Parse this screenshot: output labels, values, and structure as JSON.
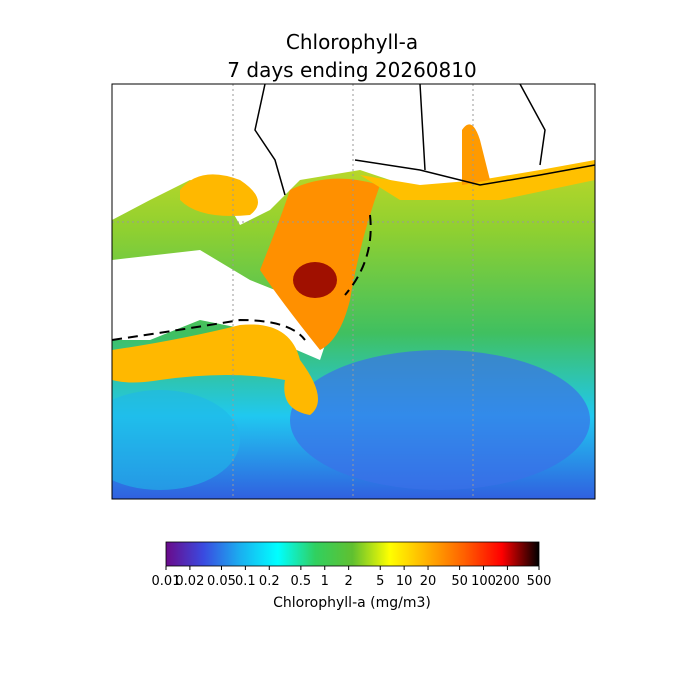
{
  "title": [
    "Chlorophyll-a",
    "7 days ending 20260810"
  ],
  "colorbar": {
    "label": "Chlorophyll-a (mg/m3)",
    "scale": "log",
    "lim": [
      0.01,
      500
    ],
    "ticks": [
      0.01,
      0.02,
      0.05,
      0.1,
      0.2,
      0.5,
      1,
      2,
      5,
      10,
      20,
      50,
      100,
      200,
      500
    ],
    "colors": [
      "#6a0a8a",
      "#3a4ae0",
      "#1ab0f0",
      "#00ffff",
      "#30d060",
      "#60c030",
      "#ffff00",
      "#ffb000",
      "#ff6000",
      "#ff0000",
      "#000000"
    ]
  }
}
